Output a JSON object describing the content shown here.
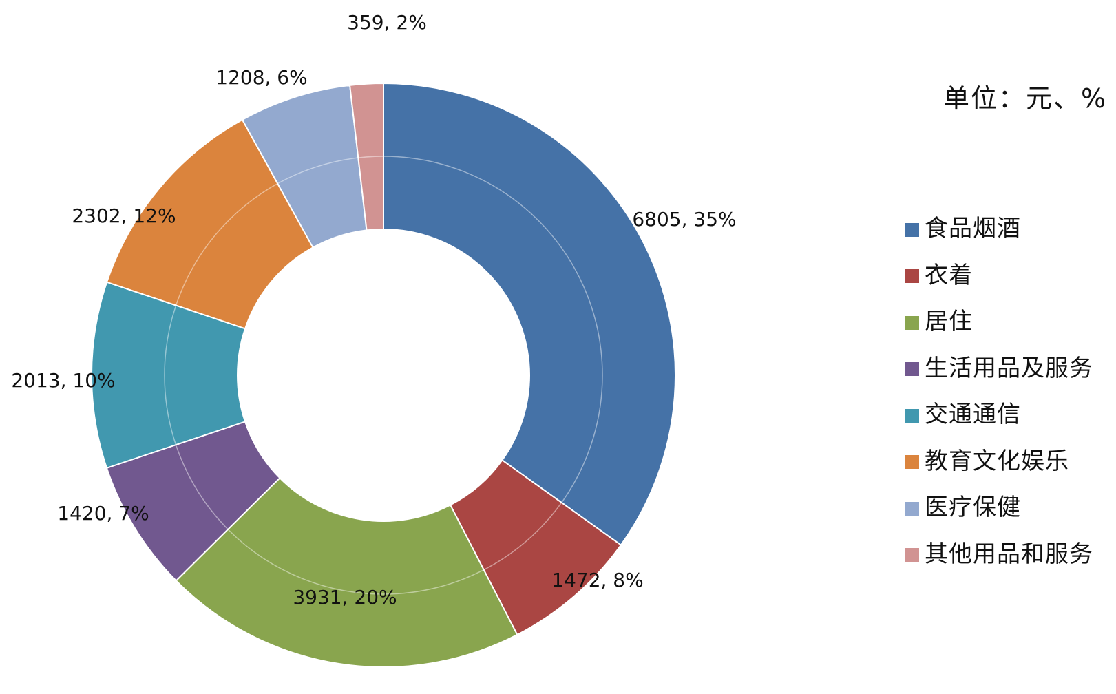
{
  "chart_data": {
    "type": "pie",
    "variant": "donut",
    "unit_label": "单位：元、%",
    "legend_placement": "right",
    "series": [
      {
        "name": "食品烟酒",
        "value": 6805,
        "percent_label": "35%",
        "label": "6805, 35%",
        "color": "#4572A7"
      },
      {
        "name": "衣着",
        "value": 1472,
        "percent_label": "8%",
        "label": "1472, 8%",
        "color": "#AA4643"
      },
      {
        "name": "居住",
        "value": 3931,
        "percent_label": "20%",
        "label": "3931, 20%",
        "color": "#89A54E"
      },
      {
        "name": "生活用品及服务",
        "value": 1420,
        "percent_label": "7%",
        "label": "1420, 7%",
        "color": "#71588F"
      },
      {
        "name": "交通通信",
        "value": 2013,
        "percent_label": "10%",
        "label": "2013, 10%",
        "color": "#4198AF"
      },
      {
        "name": "教育文化娱乐",
        "value": 2302,
        "percent_label": "12%",
        "label": "2302, 12%",
        "color": "#DB843D"
      },
      {
        "name": "医疗保健",
        "value": 1208,
        "percent_label": "6%",
        "label": "1208, 6%",
        "color": "#93A9CF"
      },
      {
        "name": "其他用品和服务",
        "value": 359,
        "percent_label": "2%",
        "label": "359, 2%",
        "color": "#D19392"
      }
    ]
  }
}
